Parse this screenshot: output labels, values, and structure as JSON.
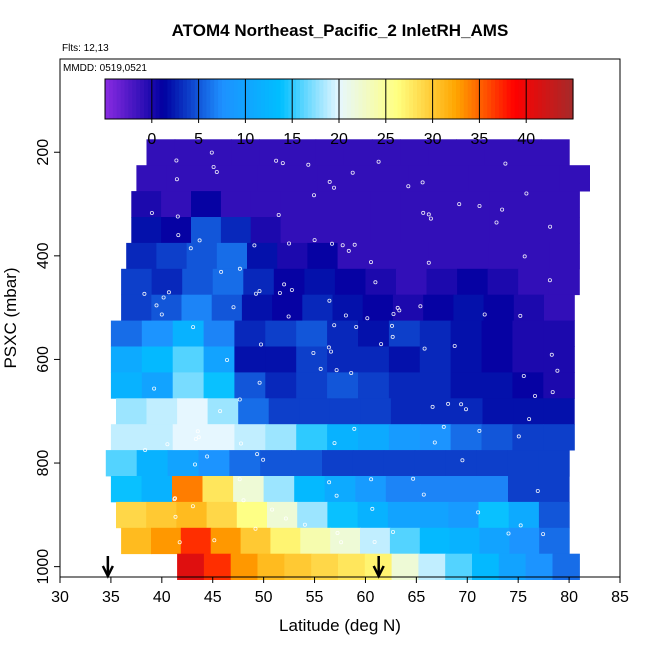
{
  "chart_data": {
    "type": "heatmap",
    "title": "ATOM4 Northeast_Pacific_2 InletRH_AMS",
    "flights_label": "Flts: 12,13",
    "dates_label": "MMDD: 0519,0521",
    "xlabel": "Latitude (deg N)",
    "ylabel": "PSXC (mbar)",
    "xlim": [
      30,
      85
    ],
    "ylim": [
      1020,
      20
    ],
    "y_reversed": true,
    "x_ticks": [
      30,
      35,
      40,
      45,
      50,
      55,
      60,
      65,
      70,
      75,
      80,
      85
    ],
    "y_ticks": [
      200,
      400,
      600,
      800,
      1000
    ],
    "colorbar": {
      "range": [
        -5,
        45
      ],
      "ticks": [
        0,
        5,
        10,
        15,
        20,
        25,
        30,
        35,
        40
      ],
      "stops": [
        "#8a2be2",
        "#0000a0",
        "#1e90ff",
        "#00bfff",
        "#e6f7ff",
        "#ffff80",
        "#ffa500",
        "#ff0000",
        "#a52a2a"
      ]
    },
    "levels": [
      {
        "p": 200,
        "lat_range": [
          38.5,
          80
        ],
        "values": [
          -1,
          -1,
          -1,
          -1,
          -1,
          -1,
          -1,
          -1,
          -1,
          -1,
          -1,
          -1,
          -1,
          -1,
          -1
        ]
      },
      {
        "p": 250,
        "lat_range": [
          37.5,
          82
        ],
        "values": [
          -1,
          -1,
          -1,
          -1,
          -1,
          -1,
          -1,
          -1,
          -1,
          -1,
          -1,
          -1,
          -1,
          -1,
          -1
        ]
      },
      {
        "p": 300,
        "lat_range": [
          37,
          81
        ],
        "values": [
          0,
          -1,
          1,
          -1,
          -1,
          -1,
          -1,
          -1,
          -1,
          -1,
          -1,
          -1,
          -1,
          -1,
          -1
        ]
      },
      {
        "p": 350,
        "lat_range": [
          37,
          81
        ],
        "values": [
          2,
          1,
          5,
          3,
          0,
          -1,
          -1,
          -1,
          -1,
          -1,
          -1,
          -1,
          -1,
          -1,
          -1
        ]
      },
      {
        "p": 400,
        "lat_range": [
          36.5,
          81
        ],
        "values": [
          3,
          4,
          5,
          6,
          2,
          0,
          1,
          -1,
          -1,
          -1,
          -1,
          -1,
          -1,
          -1,
          -1
        ]
      },
      {
        "p": 450,
        "lat_range": [
          36,
          81
        ],
        "values": [
          4,
          3,
          5,
          6,
          3,
          1,
          2,
          1,
          0,
          -1,
          0,
          1,
          0,
          -1,
          -1
        ]
      },
      {
        "p": 500,
        "lat_range": [
          36,
          80.5
        ],
        "values": [
          4,
          5,
          7,
          5,
          2,
          1,
          3,
          2,
          1,
          0,
          1,
          2,
          1,
          0,
          -1
        ]
      },
      {
        "p": 550,
        "lat_range": [
          35,
          80.5
        ],
        "values": [
          6,
          8,
          12,
          7,
          3,
          4,
          5,
          3,
          2,
          4,
          3,
          2,
          1,
          0,
          0
        ]
      },
      {
        "p": 600,
        "lat_range": [
          35,
          80.5
        ],
        "values": [
          11,
          13,
          16,
          10,
          2,
          2,
          4,
          3,
          3,
          2,
          3,
          2,
          1,
          0,
          0
        ]
      },
      {
        "p": 650,
        "lat_range": [
          35,
          80.5
        ],
        "values": [
          12,
          10,
          17,
          14,
          5,
          3,
          4,
          5,
          4,
          3,
          3,
          2,
          2,
          1,
          0
        ]
      },
      {
        "p": 700,
        "lat_range": [
          35.5,
          80.5
        ],
        "values": [
          18,
          19,
          20,
          18,
          6,
          4,
          4,
          4,
          4,
          3,
          3,
          3,
          2,
          2,
          2
        ]
      },
      {
        "p": 750,
        "lat_range": [
          35,
          80.5
        ],
        "values": [
          19,
          19,
          20,
          20,
          19,
          18,
          15,
          12,
          11,
          9,
          8,
          6,
          5,
          4,
          4
        ]
      },
      {
        "p": 800,
        "lat_range": [
          34.5,
          80
        ],
        "values": [
          16,
          12,
          10,
          8,
          6,
          5,
          5,
          4,
          4,
          4,
          4,
          4,
          4,
          4,
          4
        ]
      },
      {
        "p": 850,
        "lat_range": [
          35,
          80
        ],
        "values": [
          14,
          12,
          34,
          28,
          22,
          18,
          13,
          11,
          9,
          7,
          7,
          7,
          7,
          4,
          4
        ]
      },
      {
        "p": 900,
        "lat_range": [
          35.5,
          80
        ],
        "values": [
          29,
          30,
          31,
          29,
          26,
          22,
          18,
          14,
          12,
          10,
          10,
          9,
          14,
          11,
          5
        ]
      },
      {
        "p": 950,
        "lat_range": [
          36,
          80
        ],
        "values": [
          31,
          33,
          37,
          33,
          30,
          27,
          24,
          22,
          19,
          16,
          13,
          12,
          10,
          8,
          6
        ]
      },
      {
        "p": 1000,
        "lat_range": [
          41.5,
          81
        ],
        "values": [
          41,
          37,
          33,
          31,
          30,
          29,
          28,
          27,
          22,
          19,
          16,
          13,
          10,
          8,
          6
        ]
      }
    ],
    "markers": {
      "description_arrows": "downward arrows at the x axis",
      "lat": [
        34.7,
        61.3
      ]
    }
  }
}
